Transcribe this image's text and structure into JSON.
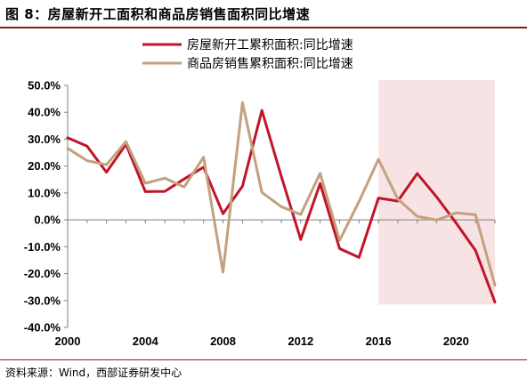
{
  "figure": {
    "title": "图 8：房屋新开工面积和商品房销售面积同比增速",
    "source": "资料来源：Wind，西部证券研发中心"
  },
  "colors": {
    "red": "#c0152a",
    "tan": "#c4a07e",
    "shade": "#f7e3e3",
    "axis": "#7f7f7f",
    "rule": "#8b1a1a"
  },
  "chart_data": {
    "type": "line",
    "title": "",
    "xlabel": "",
    "ylabel": "",
    "x": [
      2000,
      2001,
      2002,
      2003,
      2004,
      2005,
      2006,
      2007,
      2008,
      2009,
      2010,
      2011,
      2012,
      2013,
      2014,
      2015,
      2016,
      2017,
      2018,
      2019,
      2020,
      2021,
      2022
    ],
    "xlim": [
      2000,
      2022
    ],
    "ylim": [
      -40,
      50
    ],
    "y_tick_step": 10,
    "y_tick_suffix": "%",
    "y_tick_decimals": 1,
    "x_ticks": [
      2000,
      2004,
      2008,
      2012,
      2016,
      2020
    ],
    "grid": false,
    "legend_position": "top",
    "shaded_region": {
      "x_start": 2016,
      "x_end": 2022,
      "y_start": -31.5,
      "y_end": 52
    },
    "series": [
      {
        "name": "房屋新开工累积面积:同比增速",
        "color_key": "red",
        "values": [
          30.5,
          27.4,
          17.7,
          28.1,
          10.5,
          10.6,
          15.2,
          19.6,
          2.3,
          12.5,
          40.7,
          16.2,
          -7.3,
          13.5,
          -10.7,
          -14.0,
          8.1,
          7.0,
          17.2,
          8.5,
          -1.2,
          -11.4,
          -30.6
        ]
      },
      {
        "name": "商品房销售累积面积:同比增速",
        "color_key": "tan",
        "values": [
          26.6,
          22.0,
          20.5,
          29.1,
          13.6,
          15.5,
          12.2,
          23.3,
          -19.5,
          43.6,
          10.2,
          4.9,
          2.0,
          17.3,
          -7.6,
          6.8,
          22.5,
          7.7,
          1.3,
          -0.1,
          2.6,
          1.9,
          -24.3
        ]
      }
    ]
  }
}
